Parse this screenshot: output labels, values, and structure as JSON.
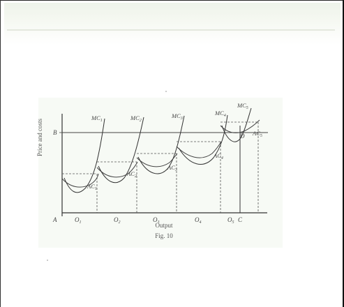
{
  "figure": {
    "caption_axis_x": "Output",
    "caption_axis_y": "Price and costs",
    "fig_label": "Fig. 10",
    "point_A": "A",
    "point_B": "B",
    "point_C": "C",
    "point_D": "D",
    "output_labels": [
      "O",
      "O",
      "O",
      "O",
      "O"
    ],
    "output_subs": [
      "1",
      "2",
      "3",
      "4",
      "5"
    ],
    "mc_labels": [
      "MC",
      "MC",
      "MC",
      "MC",
      "MC"
    ],
    "mc_subs": [
      "1",
      "2",
      "3",
      "4",
      "5"
    ],
    "ac_labels": [
      "AC",
      "AC",
      "AC",
      "AC",
      "AC"
    ],
    "ac_subs": [
      "1",
      "2",
      "3",
      "4",
      "5"
    ]
  }
}
